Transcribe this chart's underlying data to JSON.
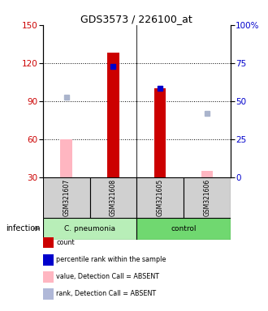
{
  "title": "GDS3573 / 226100_at",
  "samples": [
    "GSM321607",
    "GSM321608",
    "GSM321605",
    "GSM321606"
  ],
  "bar_bottom": 30,
  "ylim": [
    30,
    150
  ],
  "yticks_left": [
    30,
    60,
    90,
    120,
    150
  ],
  "yticks_right": [
    0,
    25,
    50,
    75,
    100
  ],
  "ylabel_left_color": "#cc0000",
  "ylabel_right_color": "#0000cc",
  "bar_width": 0.25,
  "red_bars": {
    "GSM321608": 128,
    "GSM321605": 100
  },
  "pink_bars": {
    "GSM321607": 60,
    "GSM321606": 35
  },
  "blue_squares": {
    "GSM321608": 117,
    "GSM321605": 100
  },
  "light_blue_squares": {
    "GSM321607": 93,
    "GSM321606": 80
  },
  "group_regions": [
    {
      "label": "C. pneumonia",
      "start": 0,
      "end": 1,
      "color": "#c0f0c0"
    },
    {
      "label": "control",
      "start": 2,
      "end": 3,
      "color": "#80e080"
    }
  ],
  "infection_label": "infection",
  "legend_colors": [
    "#cc0000",
    "#0000cc",
    "#ffb6c1",
    "#b0b8d8"
  ],
  "legend_labels": [
    "count",
    "percentile rank within the sample",
    "value, Detection Call = ABSENT",
    "rank, Detection Call = ABSENT"
  ]
}
